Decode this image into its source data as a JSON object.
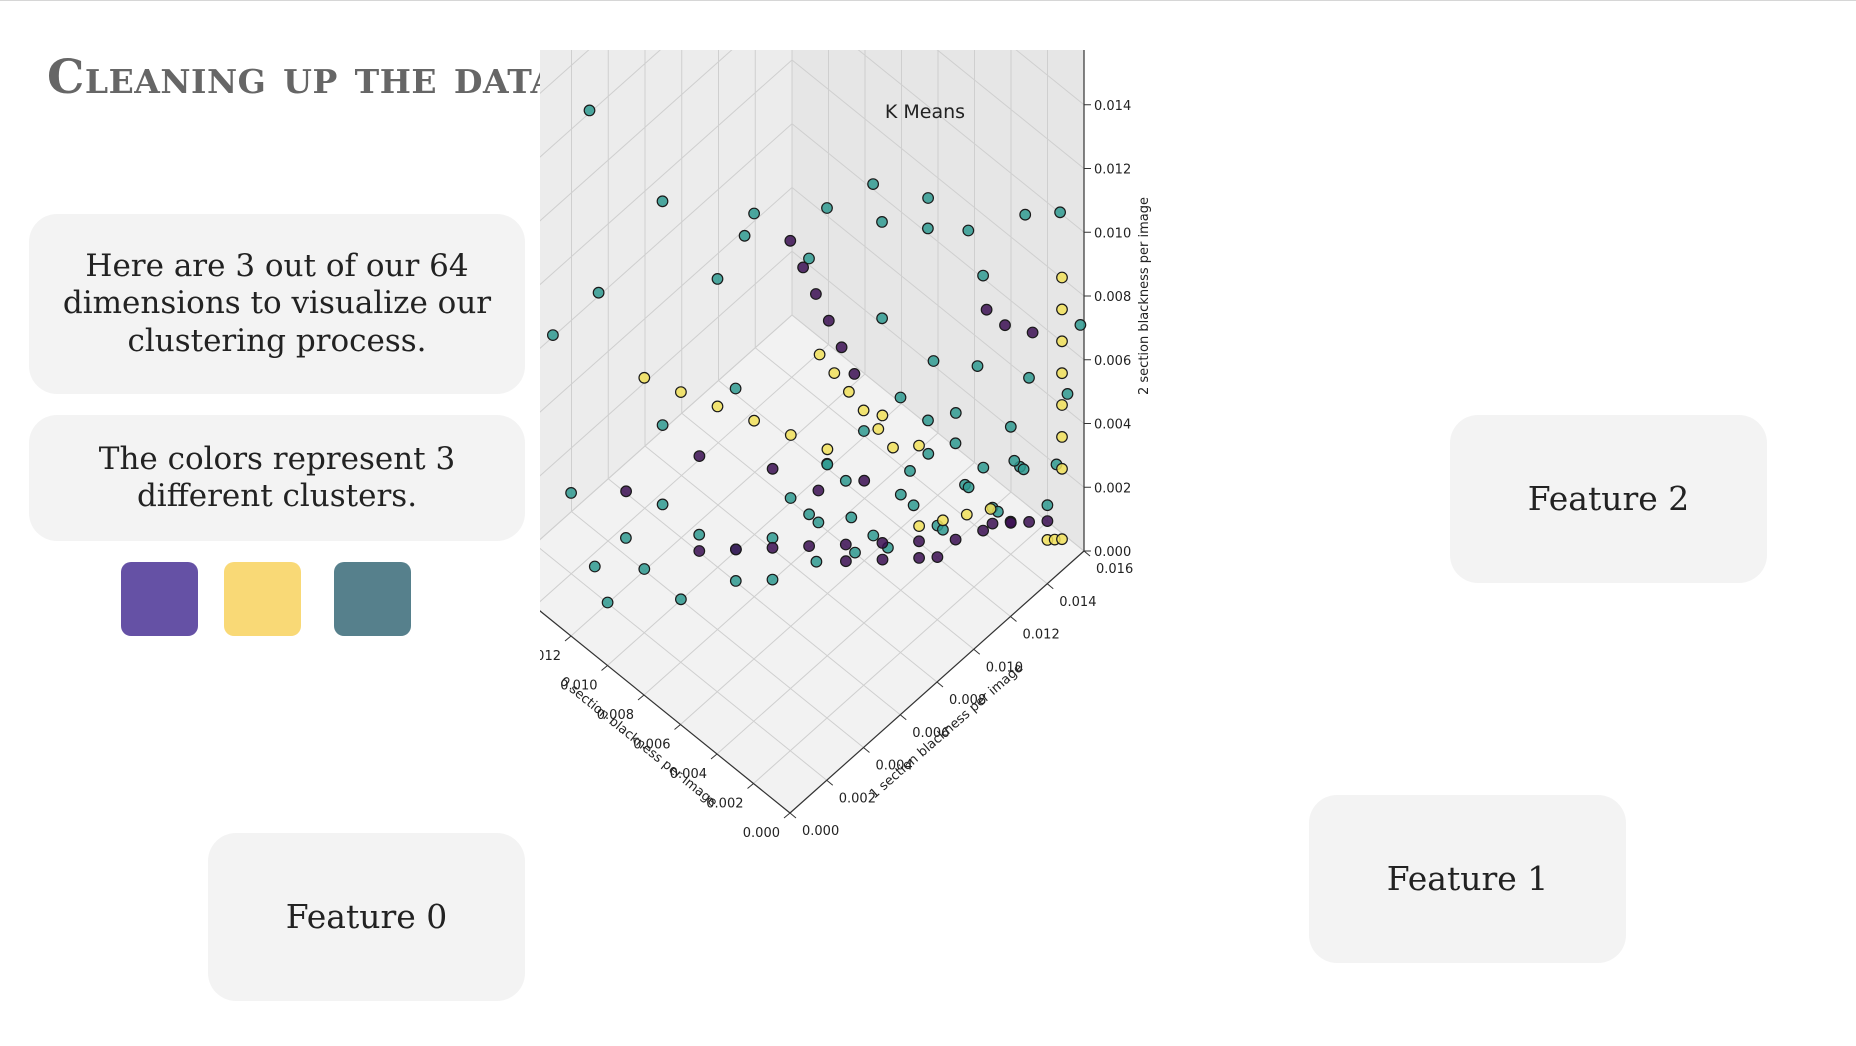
{
  "slide": {
    "title": "Cleaning up the data",
    "intro_text": "Here are 3 out of our 64 dimensions to visualize our clustering process.",
    "colors_text": "The colors represent 3 different clusters.",
    "feature0_label": "Feature 0",
    "feature1_label": "Feature 1",
    "feature2_label": "Feature 2"
  },
  "swatches": [
    {
      "name": "purple",
      "color": "#6551a5"
    },
    {
      "name": "yellow",
      "color": "#f9d976"
    },
    {
      "name": "teal",
      "color": "#56808c"
    }
  ],
  "chart_data": {
    "type": "scatter",
    "title": "K Means",
    "xlabel": "0 section blackness per image",
    "ylabel": "1 section blackness per image",
    "zlabel": "2 section blackness per image",
    "xlim": [
      0,
      0.016
    ],
    "ylim": [
      0,
      0.016
    ],
    "zlim": [
      0,
      0.016
    ],
    "ticks": [
      "0.000",
      "0.002",
      "0.004",
      "0.006",
      "0.008",
      "0.010",
      "0.012",
      "0.014",
      "0.016"
    ],
    "grid": true,
    "series": [
      {
        "color": "#2f9a90",
        "points": [
          [
            0.015,
            0.0005,
            0.003
          ],
          [
            0.014,
            0.001,
            0.008
          ],
          [
            0.013,
            0.002,
            0.015
          ],
          [
            0.012,
            0.0015,
            0.01
          ],
          [
            0.0155,
            0.0003,
            0.012
          ],
          [
            0.01,
            0.003,
            0.006
          ],
          [
            0.009,
            0.002,
            0.014
          ],
          [
            0.008,
            0.004,
            0.011
          ],
          [
            0.007,
            0.005,
            0.013
          ],
          [
            0.006,
            0.003,
            0.009
          ],
          [
            0.005,
            0.006,
            0.012
          ],
          [
            0.0045,
            0.002,
            0.015
          ],
          [
            0.0035,
            0.008,
            0.014
          ],
          [
            0.003,
            0.005,
            0.007
          ],
          [
            0.0025,
            0.01,
            0.013
          ],
          [
            0.002,
            0.007,
            0.011
          ],
          [
            0.0015,
            0.012,
            0.01
          ],
          [
            0.0012,
            0.009,
            0.009
          ],
          [
            0.001,
            0.014,
            0.006
          ],
          [
            0.0008,
            0.011,
            0.008
          ],
          [
            0.011,
            0.001,
            0.001
          ],
          [
            0.01,
            0.002,
            0.002
          ],
          [
            0.009,
            0.003,
            0.001
          ],
          [
            0.008,
            0.005,
            0.002
          ],
          [
            0.007,
            0.006,
            0.001
          ],
          [
            0.0065,
            0.008,
            0.002
          ],
          [
            0.0055,
            0.009,
            0.001
          ],
          [
            0.0045,
            0.011,
            0.003
          ],
          [
            0.004,
            0.012,
            0.001
          ],
          [
            0.0035,
            0.013,
            0.002
          ],
          [
            0.003,
            0.014,
            0.001
          ],
          [
            0.0025,
            0.015,
            0.002
          ],
          [
            0.006,
            0.007,
            0.003
          ],
          [
            0.005,
            0.008,
            0.004
          ],
          [
            0.0045,
            0.009,
            0.002
          ],
          [
            0.004,
            0.01,
            0.003
          ],
          [
            0.0035,
            0.011,
            0.004
          ],
          [
            0.003,
            0.012,
            0.005
          ],
          [
            0.0025,
            0.013,
            0.003
          ],
          [
            0.002,
            0.014,
            0.004
          ],
          [
            0.0075,
            0.0045,
            0.0015
          ],
          [
            0.0068,
            0.0058,
            0.0025
          ],
          [
            0.0058,
            0.0072,
            0.0015
          ],
          [
            0.0052,
            0.0085,
            0.0025
          ],
          [
            0.0042,
            0.0095,
            0.0015
          ],
          [
            0.0038,
            0.0105,
            0.0025
          ],
          [
            0.0032,
            0.0115,
            0.0015
          ],
          [
            0.0028,
            0.0125,
            0.0025
          ],
          [
            0.0022,
            0.0135,
            0.0015
          ],
          [
            0.0018,
            0.0145,
            0.0025
          ],
          [
            0.0015,
            0.0155,
            0.001
          ],
          [
            0.0085,
            0.0035,
            0.003
          ],
          [
            0.0095,
            0.0025,
            0.004
          ],
          [
            0.0105,
            0.0015,
            0.003
          ],
          [
            0.0115,
            0.0008,
            0.002
          ],
          [
            0.0125,
            0.0005,
            0.004
          ],
          [
            0.002,
            0.004,
            0.016
          ],
          [
            0.001,
            0.006,
            0.015
          ],
          [
            0.0005,
            0.008,
            0.014
          ],
          [
            0.0003,
            0.01,
            0.013
          ],
          [
            0.0002,
            0.013,
            0.012
          ],
          [
            0.0003,
            0.015,
            0.011
          ],
          [
            0.005,
            0.005,
            0.005
          ],
          [
            0.004,
            0.006,
            0.006
          ],
          [
            0.003,
            0.007,
            0.007
          ],
          [
            0.002,
            0.008,
            0.008
          ],
          [
            0.0015,
            0.009,
            0.007
          ],
          [
            0.001,
            0.01,
            0.006
          ],
          [
            0.0008,
            0.013,
            0.004
          ],
          [
            0.0005,
            0.015,
            0.003
          ],
          [
            0.0004,
            0.0155,
            0.005
          ],
          [
            0.0002,
            0.016,
            0.007
          ]
        ]
      },
      {
        "color": "#3b0f52",
        "points": [
          [
            0.002,
            0.002,
            0.016
          ],
          [
            0.0018,
            0.0025,
            0.015
          ],
          [
            0.0016,
            0.003,
            0.014
          ],
          [
            0.0014,
            0.0035,
            0.013
          ],
          [
            0.0012,
            0.004,
            0.012
          ],
          [
            0.001,
            0.0045,
            0.011
          ],
          [
            0.009,
            0.004,
            0.002
          ],
          [
            0.008,
            0.005,
            0.002
          ],
          [
            0.007,
            0.006,
            0.002
          ],
          [
            0.006,
            0.007,
            0.002
          ],
          [
            0.005,
            0.008,
            0.002
          ],
          [
            0.004,
            0.009,
            0.002
          ],
          [
            0.003,
            0.01,
            0.002
          ],
          [
            0.002,
            0.011,
            0.002
          ],
          [
            0.0015,
            0.012,
            0.002
          ],
          [
            0.001,
            0.013,
            0.002
          ],
          [
            0.003,
            0.014,
            0.0005
          ],
          [
            0.0025,
            0.0145,
            0.0005
          ],
          [
            0.002,
            0.015,
            0.0005
          ],
          [
            0.0015,
            0.0155,
            0.0005
          ],
          [
            0.006,
            0.009,
            0.0005
          ],
          [
            0.005,
            0.01,
            0.0005
          ],
          [
            0.004,
            0.011,
            0.0005
          ],
          [
            0.0035,
            0.0115,
            0.0005
          ],
          [
            0.0003,
            0.011,
            0.01
          ],
          [
            0.0003,
            0.012,
            0.009
          ],
          [
            0.0003,
            0.0135,
            0.008
          ],
          [
            0.012,
            0.003,
            0.003
          ],
          [
            0.01,
            0.005,
            0.004
          ],
          [
            0.008,
            0.007,
            0.0035
          ],
          [
            0.0065,
            0.008,
            0.003
          ],
          [
            0.0055,
            0.0095,
            0.003
          ]
        ]
      },
      {
        "color": "#f1e15b",
        "points": [
          [
            0.0016,
            0.0032,
            0.012
          ],
          [
            0.0014,
            0.0038,
            0.0112
          ],
          [
            0.0012,
            0.0044,
            0.0104
          ],
          [
            0.001,
            0.005,
            0.0096
          ],
          [
            0.0008,
            0.0056,
            0.0088
          ],
          [
            0.0006,
            0.0062,
            0.008
          ],
          [
            0.01,
            0.002,
            0.008
          ],
          [
            0.009,
            0.003,
            0.0075
          ],
          [
            0.008,
            0.004,
            0.007
          ],
          [
            0.007,
            0.005,
            0.0065
          ],
          [
            0.006,
            0.006,
            0.006
          ],
          [
            0.005,
            0.007,
            0.0055
          ],
          [
            0.0002,
            0.015,
            0.003
          ],
          [
            0.0002,
            0.015,
            0.004
          ],
          [
            0.0002,
            0.015,
            0.005
          ],
          [
            0.0002,
            0.015,
            0.006
          ],
          [
            0.0002,
            0.015,
            0.007
          ],
          [
            0.0002,
            0.015,
            0.008
          ],
          [
            0.0002,
            0.015,
            0.009
          ],
          [
            0.004,
            0.011,
            0.0015
          ],
          [
            0.0035,
            0.0118,
            0.0015
          ],
          [
            0.003,
            0.0126,
            0.0015
          ],
          [
            0.0025,
            0.0134,
            0.0015
          ],
          [
            0.001,
            0.015,
            0.0004
          ],
          [
            0.0008,
            0.0152,
            0.0004
          ],
          [
            0.0006,
            0.0154,
            0.0004
          ],
          [
            0.004,
            0.009,
            0.006
          ],
          [
            0.003,
            0.01,
            0.005
          ]
        ]
      }
    ]
  }
}
